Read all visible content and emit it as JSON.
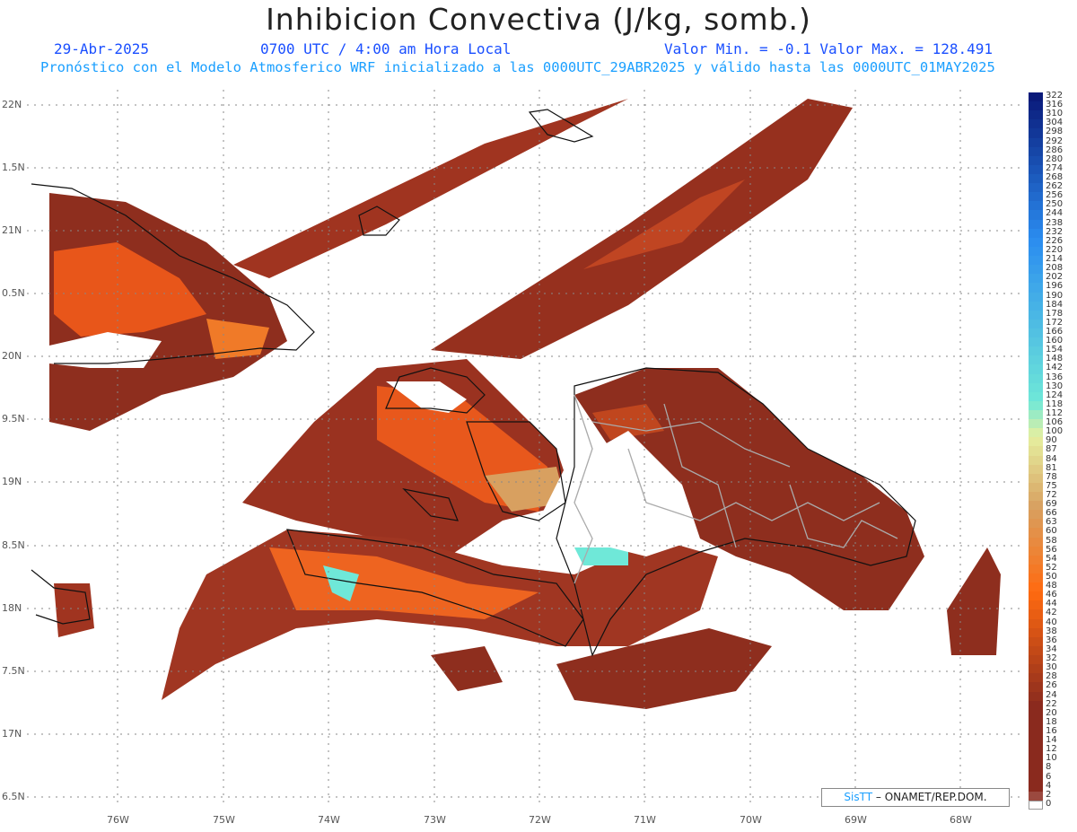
{
  "header": {
    "title": "Inhibicion Convectiva (J/kg, somb.)",
    "date": "29-Abr-2025",
    "time": "0700 UTC / 4:00 am Hora Local",
    "minmax": "Valor Min. = -0.1  Valor Max. = 128.491",
    "forecast": "Pronóstico con el Modelo Atmosferico WRF inicializado a las 0000UTC_29ABR2025 y válido hasta las  0000UTC_01MAY2025"
  },
  "lat_labels": [
    "22N",
    "1.5N",
    "21N",
    "0.5N",
    "20N",
    "9.5N",
    "19N",
    "8.5N",
    "18N",
    "7.5N",
    "17N",
    "6.5N"
  ],
  "lon_labels": [
    "76W",
    "75W",
    "74W",
    "73W",
    "72W",
    "71W",
    "70W",
    "69W",
    "68W"
  ],
  "colorbar": {
    "labels": [
      "322",
      "316",
      "310",
      "304",
      "298",
      "292",
      "286",
      "280",
      "274",
      "268",
      "262",
      "256",
      "250",
      "244",
      "238",
      "232",
      "226",
      "220",
      "214",
      "208",
      "202",
      "196",
      "190",
      "184",
      "178",
      "172",
      "166",
      "160",
      "154",
      "148",
      "142",
      "136",
      "130",
      "124",
      "118",
      "112",
      "106",
      "100",
      "90",
      "87",
      "84",
      "81",
      "78",
      "75",
      "72",
      "69",
      "66",
      "63",
      "60",
      "58",
      "56",
      "54",
      "52",
      "50",
      "48",
      "46",
      "44",
      "42",
      "40",
      "38",
      "36",
      "34",
      "32",
      "30",
      "28",
      "26",
      "24",
      "22",
      "20",
      "18",
      "16",
      "14",
      "12",
      "10",
      "8",
      "6",
      "4",
      "2",
      "0"
    ],
    "colors": {
      "high": "#0a1a7a",
      "mid_blue": "#2a8cf0",
      "cyan": "#6fe8d8",
      "yellow_green": "#e6f0a0",
      "tan": "#d8a060",
      "orange": "#ff6a10",
      "brown": "#8a2a1e",
      "zero": "#ffffff"
    }
  },
  "credit": {
    "logo": "SisTT",
    "text": "– ONAMET/REP.DOM."
  }
}
